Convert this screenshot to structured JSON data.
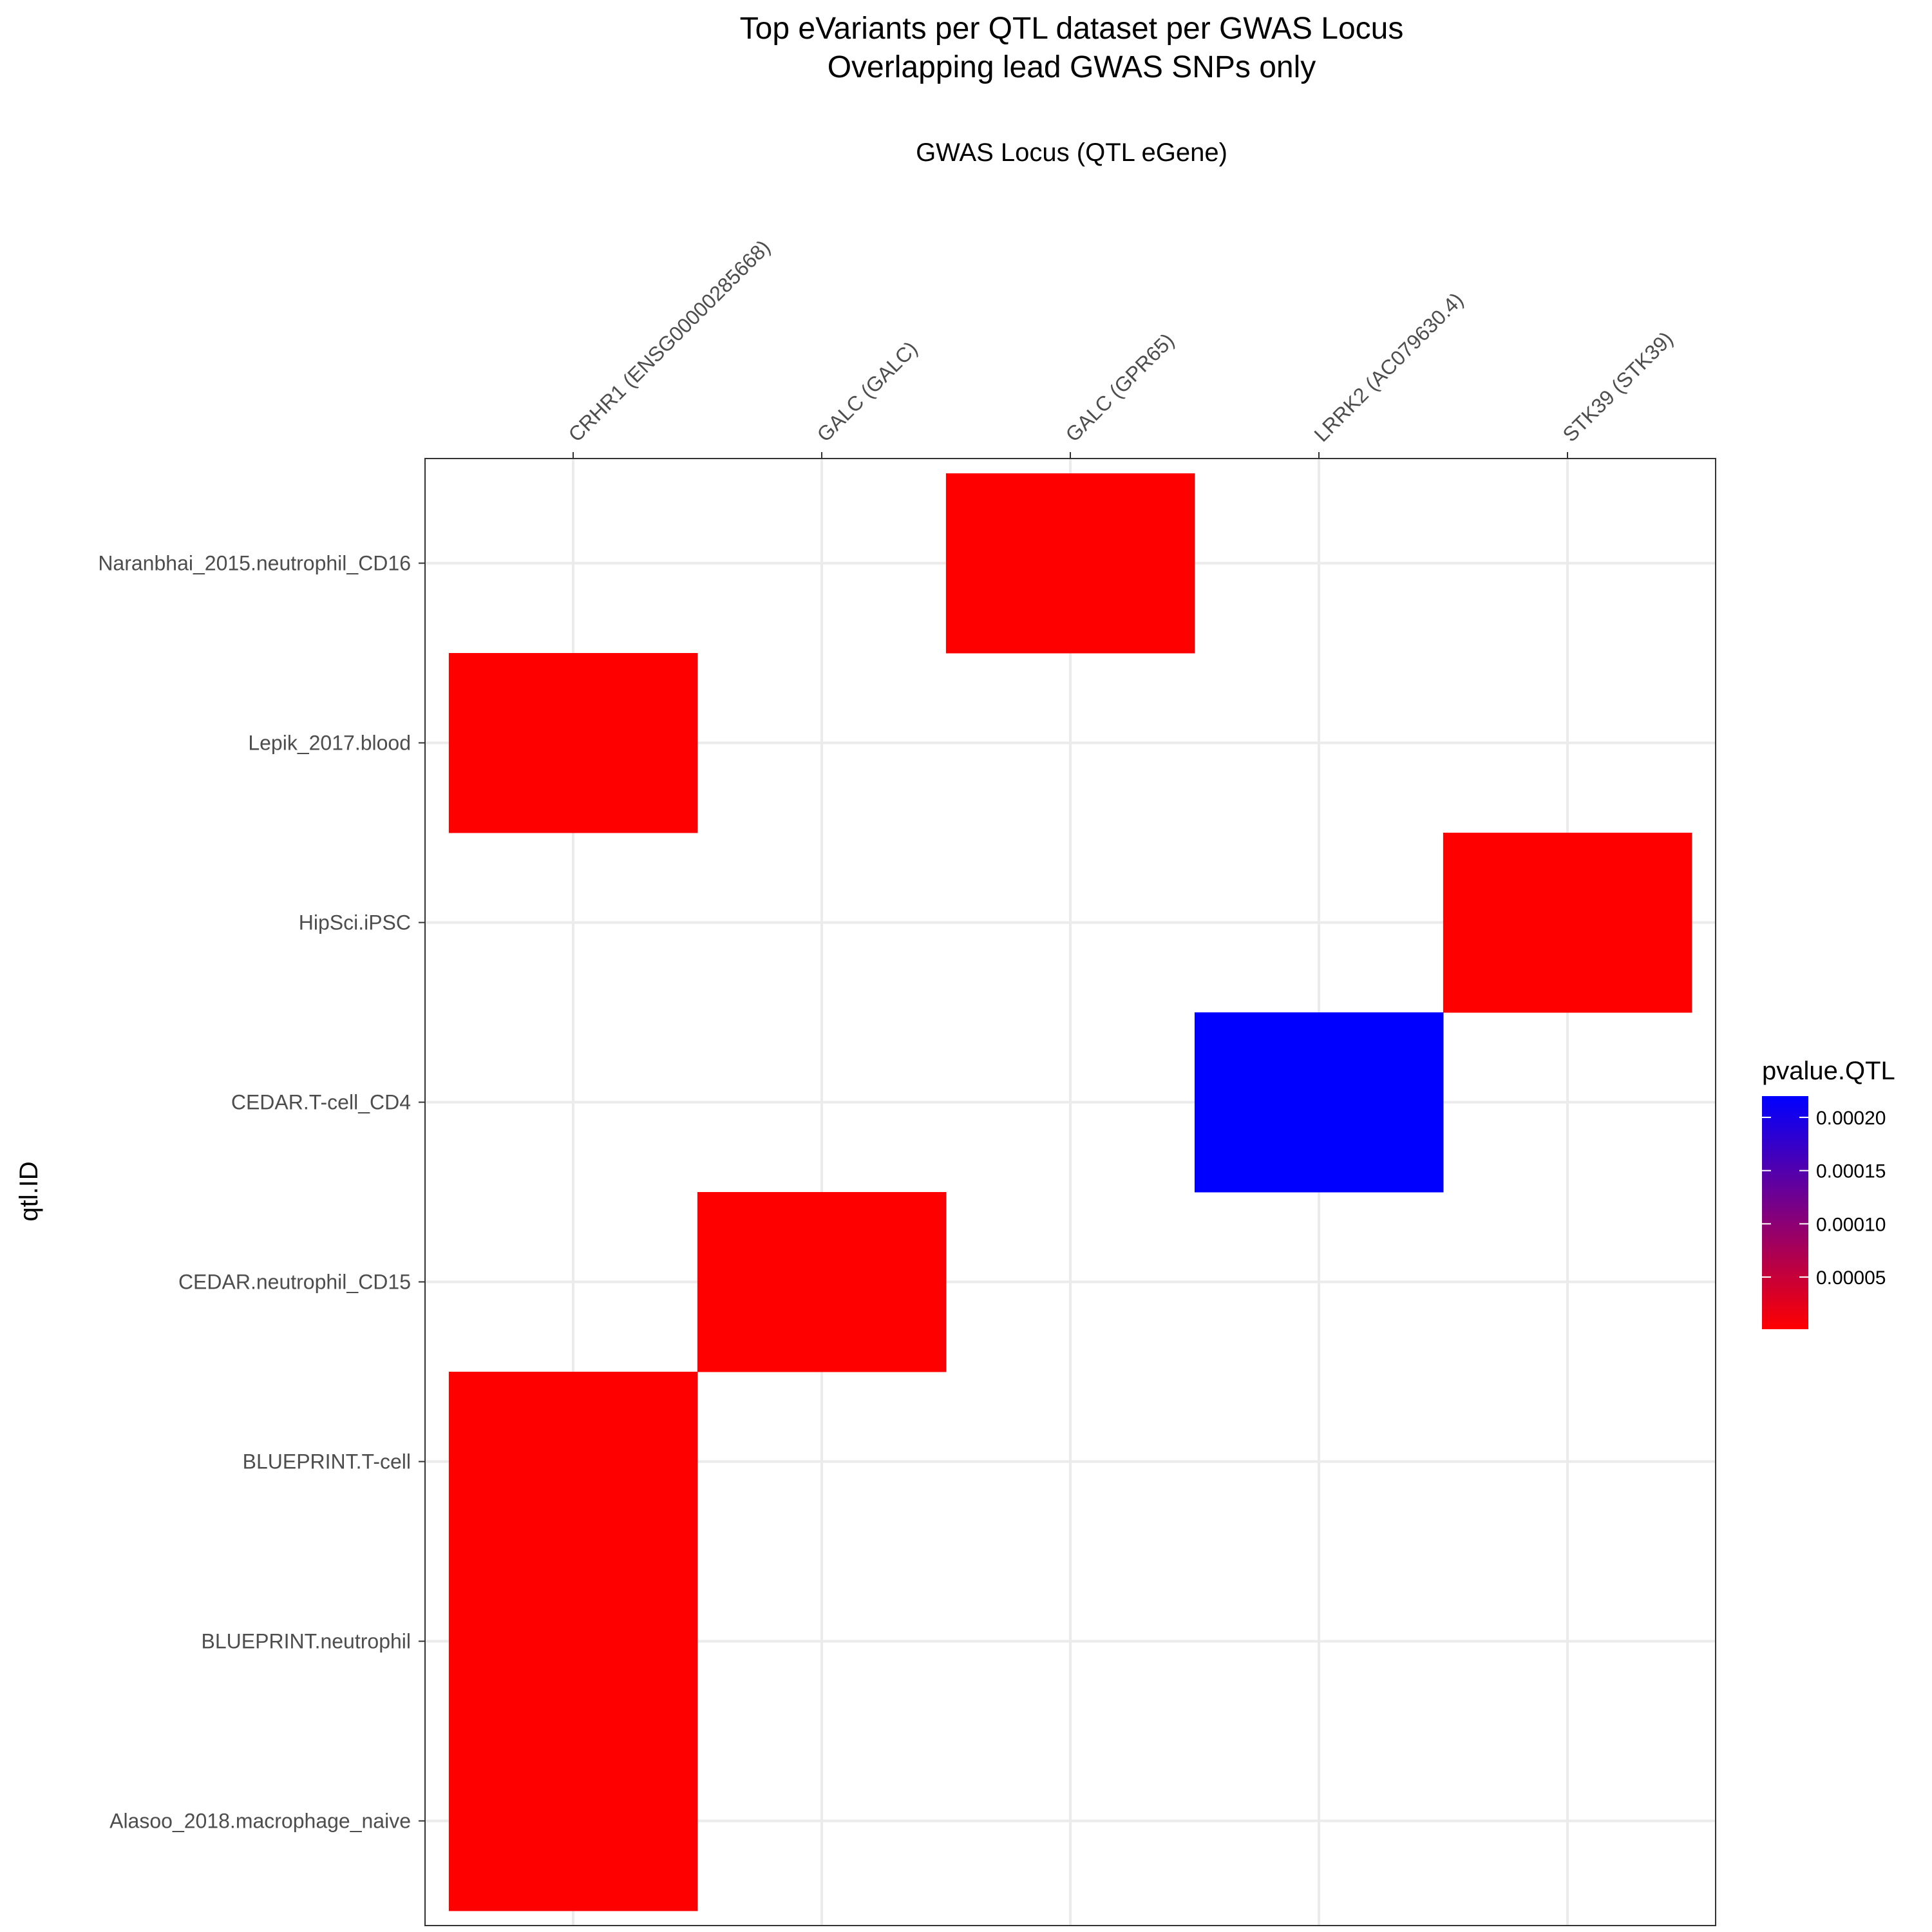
{
  "chart_data": {
    "type": "heatmap",
    "title": "Top eVariants per QTL dataset per GWAS Locus",
    "subtitle": "Overlapping lead GWAS SNPs only",
    "xlabel": "GWAS Locus (QTL eGene)",
    "ylabel": "qtl.ID",
    "x_axis_position": "top",
    "x_categories": [
      "CRHR1  (ENSG00000285668)",
      "GALC  (GALC)",
      "GALC  (GPR65)",
      "LRRK2  (AC079630.4)",
      "STK39  (STK39)"
    ],
    "y_categories": [
      "Naranbhai_2015.neutrophil_CD16",
      "Lepik_2017.blood",
      "HipSci.iPSC",
      "CEDAR.T-cell_CD4",
      "CEDAR.neutrophil_CD15",
      "BLUEPRINT.T-cell",
      "BLUEPRINT.neutrophil",
      "Alasoo_2018.macrophage_naive"
    ],
    "cells": [
      {
        "x": "GALC  (GPR65)",
        "y": "Naranbhai_2015.neutrophil_CD16",
        "value": 1e-06
      },
      {
        "x": "CRHR1  (ENSG00000285668)",
        "y": "Lepik_2017.blood",
        "value": 1e-06
      },
      {
        "x": "STK39  (STK39)",
        "y": "HipSci.iPSC",
        "value": 1e-06
      },
      {
        "x": "LRRK2  (AC079630.4)",
        "y": "CEDAR.T-cell_CD4",
        "value": 0.00022
      },
      {
        "x": "GALC  (GALC)",
        "y": "CEDAR.neutrophil_CD15",
        "value": 1e-06
      },
      {
        "x": "CRHR1  (ENSG00000285668)",
        "y": "BLUEPRINT.T-cell",
        "value": 1e-06
      },
      {
        "x": "CRHR1  (ENSG00000285668)",
        "y": "BLUEPRINT.neutrophil",
        "value": 1e-06
      },
      {
        "x": "CRHR1  (ENSG00000285668)",
        "y": "Alasoo_2018.macrophage_naive",
        "value": 1e-06
      }
    ],
    "legend": {
      "title": "pvalue.QTL",
      "position": "right",
      "low_color": "#ff0000",
      "high_color": "#0000ff",
      "range": [
        1e-06,
        0.00022
      ],
      "ticks": [
        5e-05,
        0.0001,
        0.00015,
        0.0002
      ],
      "tick_labels": [
        "0.00005",
        "0.00010",
        "0.00015",
        "0.00020"
      ]
    },
    "grid": true,
    "panel_background": "#ffffff",
    "grid_color": "#ebebeb"
  }
}
